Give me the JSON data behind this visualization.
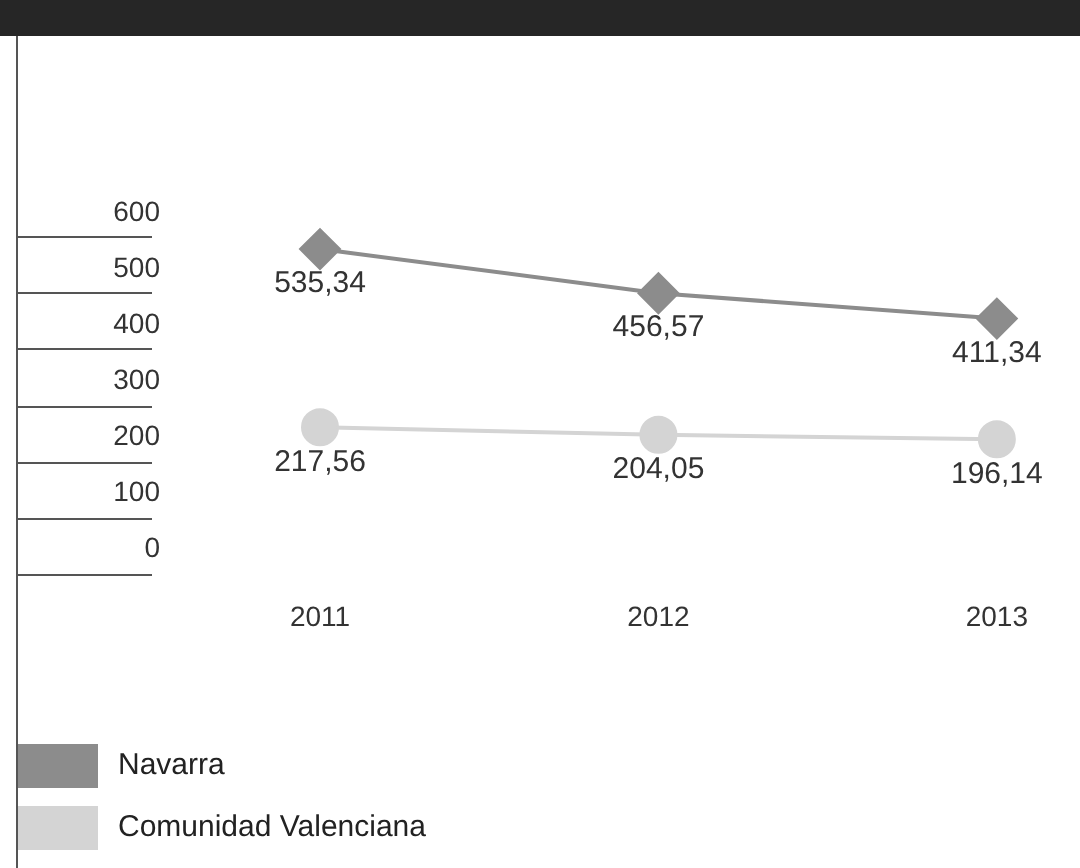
{
  "chart_data": {
    "type": "line",
    "categories": [
      "2011",
      "2012",
      "2013"
    ],
    "series": [
      {
        "name": "Navarra",
        "color": "#8c8c8c",
        "values": [
          535.34,
          456.57,
          411.34
        ],
        "marker": "diamond",
        "value_labels": [
          "535,34",
          "456,57",
          "411,34"
        ]
      },
      {
        "name": "Comunidad Valenciana",
        "color": "#d4d4d4",
        "values": [
          217.56,
          204.05,
          196.14
        ],
        "marker": "circle",
        "value_labels": [
          "217,56",
          "204,05",
          "196,14"
        ]
      }
    ],
    "ylim": [
      0,
      600
    ],
    "yticks": [
      0,
      100,
      200,
      300,
      400,
      500,
      600
    ],
    "grid": false,
    "legend": "bottom"
  }
}
